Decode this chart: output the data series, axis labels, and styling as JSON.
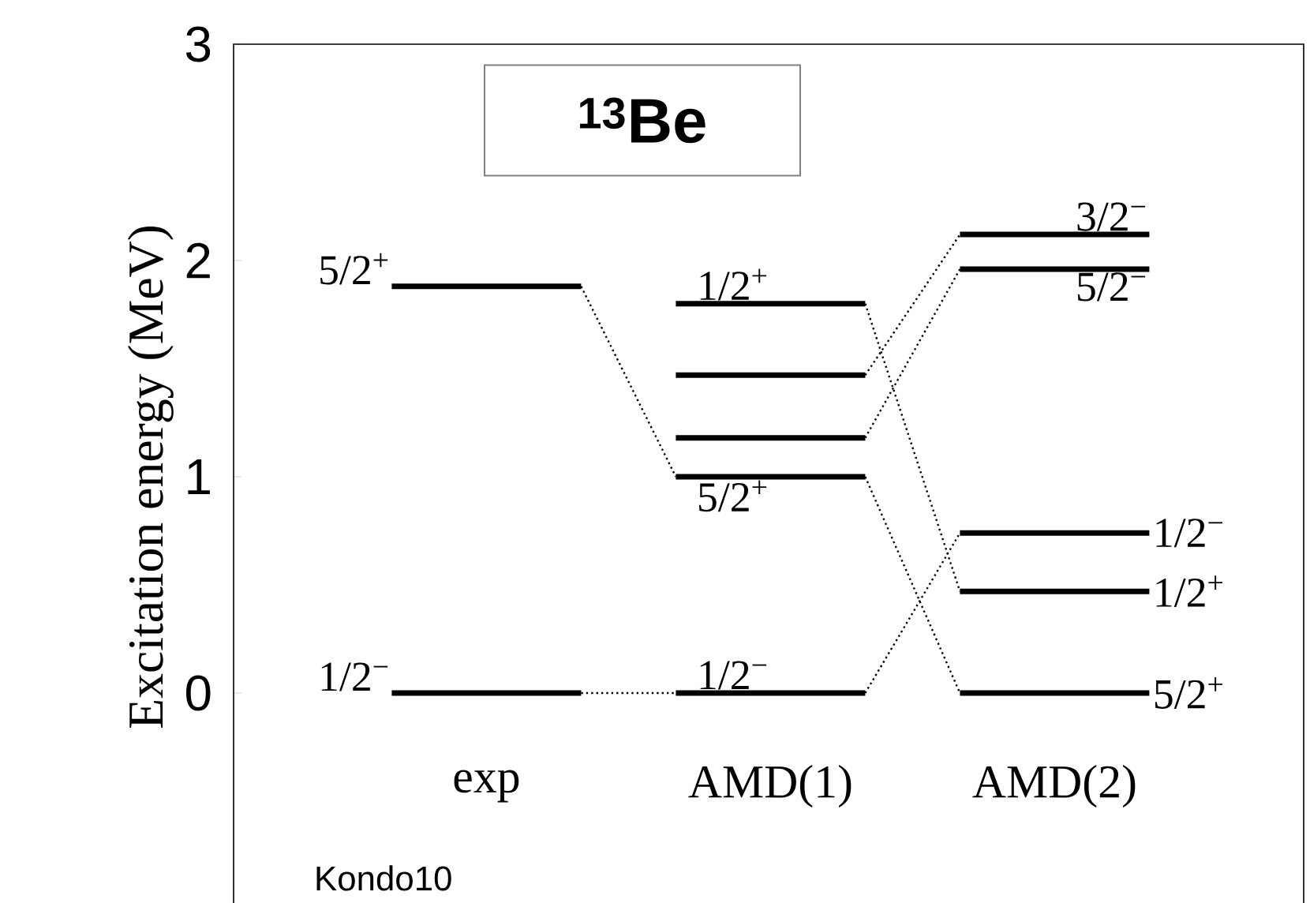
{
  "chart_data": {
    "type": "line",
    "title": "$^{13}$Be",
    "ylabel": "Excitation energy  (MeV)",
    "categories": [
      null,
      "exp",
      null,
      null,
      "AMD(1)",
      null,
      null,
      "AMD(2)",
      null
    ],
    "ylim": [
      -1,
      3
    ],
    "yticks": [
      0,
      1,
      2,
      3
    ],
    "grid": false,
    "series": [
      {
        "color": "#000000",
        "line_style": "solid",
        "values": [
          1.88,
          1.88,
          1.88,
          null,
          null,
          null,
          null,
          null,
          null
        ]
      },
      {
        "color": "#000000",
        "line_style": "solid",
        "values": [
          0,
          0,
          0,
          null,
          null,
          null,
          null,
          null,
          null
        ]
      },
      {
        "color": "#000000",
        "line_style": "solid",
        "values": [
          null,
          null,
          null,
          1.8,
          1.8,
          1.8,
          null,
          null,
          null
        ]
      },
      {
        "color": "#000000",
        "line_style": "solid",
        "values": [
          null,
          null,
          null,
          1.47,
          1.47,
          1.47,
          null,
          null,
          null
        ]
      },
      {
        "color": "#000000",
        "line_style": "solid",
        "values": [
          null,
          null,
          null,
          1.18,
          1.18,
          1.18,
          null,
          null,
          null
        ]
      },
      {
        "color": "#000000",
        "line_style": "solid",
        "values": [
          null,
          null,
          null,
          1.0,
          1.0,
          1.0,
          null,
          null,
          null
        ]
      },
      {
        "color": "#000000",
        "line_style": "solid",
        "values": [
          null,
          null,
          null,
          0,
          0,
          0,
          null,
          null,
          null
        ]
      },
      {
        "color": "#000000",
        "line_style": "solid",
        "values": [
          null,
          null,
          null,
          null,
          null,
          null,
          2.12,
          2.12,
          2.12
        ]
      },
      {
        "color": "#000000",
        "line_style": "solid",
        "values": [
          null,
          null,
          null,
          null,
          null,
          null,
          1.96,
          1.96,
          1.96
        ]
      },
      {
        "color": "#000000",
        "line_style": "solid",
        "values": [
          null,
          null,
          null,
          null,
          null,
          null,
          0.74,
          0.74,
          0.74
        ]
      },
      {
        "color": "#000000",
        "line_style": "solid",
        "values": [
          null,
          null,
          null,
          null,
          null,
          null,
          0.47,
          0.47,
          0.47
        ]
      },
      {
        "color": "#000000",
        "line_style": "solid",
        "values": [
          null,
          null,
          null,
          null,
          null,
          null,
          0,
          0,
          0
        ]
      },
      {
        "color": "#000000",
        "line_style": "dotted",
        "values": [
          null,
          null,
          1.88,
          1.0,
          null,
          null,
          null,
          null,
          null
        ]
      },
      {
        "color": "#000000",
        "line_style": "dotted",
        "values": [
          null,
          null,
          0,
          0,
          null,
          null,
          null,
          null,
          null
        ]
      },
      {
        "color": "#000000",
        "line_style": "dotted",
        "values": [
          null,
          null,
          null,
          null,
          null,
          1.8,
          0.47,
          null,
          null
        ]
      },
      {
        "color": "#000000",
        "line_style": "dotted",
        "values": [
          null,
          null,
          null,
          null,
          null,
          1.47,
          2.12,
          null,
          null
        ]
      },
      {
        "color": "#000000",
        "line_style": "dotted",
        "values": [
          null,
          null,
          null,
          null,
          null,
          1.18,
          1.96,
          null,
          null
        ]
      },
      {
        "color": "#000000",
        "line_style": "dotted",
        "values": [
          null,
          null,
          null,
          null,
          null,
          1.0,
          0,
          null,
          null
        ]
      },
      {
        "color": "#000000",
        "line_style": "dotted",
        "values": [
          null,
          null,
          null,
          null,
          null,
          0,
          0.74,
          null,
          null
        ]
      }
    ],
    "annotations": [
      {
        "text": "5/2$^{+}$",
        "x": "exp",
        "y": 1.88
      },
      {
        "text": "1/2$^{−}$",
        "x": "exp",
        "y": 0
      },
      {
        "text": "1/2$^{+}$",
        "x": "AMD(1)",
        "y": 1.8
      },
      {
        "text": "5/2$^{+}$",
        "x": "AMD(1)",
        "y": 1.0
      },
      {
        "text": "1/2$^{−}$",
        "x": "AMD(1)",
        "y": 0
      },
      {
        "text": "3/2$^{−}$",
        "x": "AMD(2)",
        "y": 2.12
      },
      {
        "text": "5/2$^{−}$",
        "x": "AMD(2)",
        "y": 1.96
      },
      {
        "text": "1/2$^{−}$",
        "x": "AMD(2)",
        "y": 0.74
      },
      {
        "text": "1/2$^{+}$",
        "x": "AMD(2)",
        "y": 0.47
      },
      {
        "text": "5/2$^{+}$",
        "x": "AMD(2)",
        "y": 0
      },
      "Kondo10"
    ]
  }
}
